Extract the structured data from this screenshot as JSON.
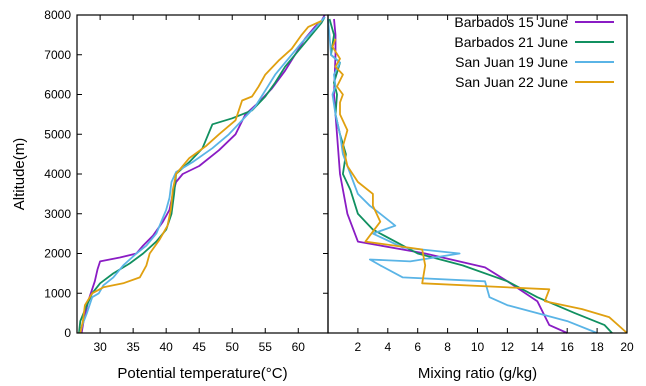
{
  "chart_data": [
    {
      "type": "line",
      "xlabel": "Potential temperature(°C)",
      "ylabel": "Altitude(m)",
      "xlim": [
        26.5,
        64.5
      ],
      "ylim": [
        0,
        8000
      ],
      "xticks": [
        30,
        35,
        40,
        45,
        50,
        55,
        60
      ],
      "yticks": [
        0,
        1000,
        2000,
        3000,
        4000,
        5000,
        6000,
        7000,
        8000
      ],
      "grid": false,
      "series": [
        {
          "name": "Barbados 15 June",
          "color": "#8a1cc4",
          "points": [
            [
              27.2,
              0
            ],
            [
              27.5,
              300
            ],
            [
              28.2,
              800
            ],
            [
              29.2,
              1300
            ],
            [
              29.6,
              1600
            ],
            [
              30.0,
              1800
            ],
            [
              33.0,
              1900
            ],
            [
              35.5,
              2000
            ],
            [
              36.5,
              2200
            ],
            [
              38.0,
              2450
            ],
            [
              39.5,
              2800
            ],
            [
              40.5,
              3100
            ],
            [
              41.0,
              3500
            ],
            [
              41.5,
              3800
            ],
            [
              42.5,
              4000
            ],
            [
              45.0,
              4200
            ],
            [
              48.0,
              4600
            ],
            [
              50.5,
              5000
            ],
            [
              52.0,
              5500
            ],
            [
              54.0,
              5800
            ],
            [
              56.0,
              6150
            ],
            [
              58.0,
              6600
            ],
            [
              59.5,
              7000
            ],
            [
              61.0,
              7400
            ],
            [
              62.5,
              7700
            ],
            [
              63.5,
              7850
            ],
            [
              64.0,
              8000
            ]
          ]
        },
        {
          "name": "Barbados 21 June",
          "color": "#119060",
          "points": [
            [
              26.8,
              0
            ],
            [
              27.0,
              300
            ],
            [
              28.0,
              700
            ],
            [
              28.8,
              1000
            ],
            [
              30.0,
              1250
            ],
            [
              32.0,
              1500
            ],
            [
              34.5,
              1750
            ],
            [
              36.5,
              2000
            ],
            [
              38.5,
              2300
            ],
            [
              40.0,
              2600
            ],
            [
              40.8,
              3000
            ],
            [
              41.2,
              3500
            ],
            [
              41.5,
              4000
            ],
            [
              43.5,
              4300
            ],
            [
              45.5,
              4650
            ],
            [
              47.0,
              5250
            ],
            [
              50.0,
              5400
            ],
            [
              53.0,
              5600
            ],
            [
              55.0,
              5950
            ],
            [
              56.5,
              6300
            ],
            [
              58.0,
              6700
            ],
            [
              60.0,
              7100
            ],
            [
              62.0,
              7500
            ],
            [
              63.5,
              7800
            ],
            [
              64.0,
              7950
            ]
          ]
        },
        {
          "name": "San Juan 19 June",
          "color": "#5ab4e6",
          "points": [
            [
              27.0,
              0
            ],
            [
              27.3,
              200
            ],
            [
              28.0,
              500
            ],
            [
              28.8,
              900
            ],
            [
              29.8,
              1000
            ],
            [
              30.5,
              1200
            ],
            [
              32.0,
              1400
            ],
            [
              33.5,
              1700
            ],
            [
              35.5,
              2000
            ],
            [
              37.0,
              2200
            ],
            [
              38.5,
              2500
            ],
            [
              39.0,
              2700
            ],
            [
              39.5,
              2900
            ],
            [
              40.0,
              3100
            ],
            [
              40.5,
              3400
            ],
            [
              40.8,
              3800
            ],
            [
              41.5,
              4050
            ],
            [
              44.0,
              4300
            ],
            [
              47.0,
              4650
            ],
            [
              49.5,
              5000
            ],
            [
              51.5,
              5350
            ],
            [
              53.5,
              5700
            ],
            [
              55.0,
              6100
            ],
            [
              56.5,
              6500
            ],
            [
              58.5,
              6900
            ],
            [
              60.5,
              7300
            ],
            [
              62.5,
              7650
            ],
            [
              64.0,
              7950
            ]
          ]
        },
        {
          "name": "San Juan 22 June",
          "color": "#e0a010",
          "points": [
            [
              27.0,
              0
            ],
            [
              27.4,
              300
            ],
            [
              27.7,
              700
            ],
            [
              28.8,
              1000
            ],
            [
              30.5,
              1150
            ],
            [
              33.5,
              1250
            ],
            [
              36.0,
              1400
            ],
            [
              37.0,
              1700
            ],
            [
              37.5,
              2000
            ],
            [
              39.0,
              2350
            ],
            [
              40.2,
              2700
            ],
            [
              40.7,
              3100
            ],
            [
              41.0,
              3600
            ],
            [
              41.5,
              4000
            ],
            [
              43.5,
              4400
            ],
            [
              46.0,
              4700
            ],
            [
              48.0,
              5000
            ],
            [
              50.5,
              5350
            ],
            [
              51.5,
              5850
            ],
            [
              53.0,
              5950
            ],
            [
              54.0,
              6200
            ],
            [
              55.0,
              6500
            ],
            [
              57.0,
              6850
            ],
            [
              59.0,
              7150
            ],
            [
              60.5,
              7500
            ],
            [
              61.5,
              7700
            ],
            [
              63.5,
              7850
            ]
          ]
        }
      ]
    },
    {
      "type": "line",
      "xlabel": "Mixing ratio (g/kg)",
      "ylabel": "",
      "xlim": [
        0,
        20
      ],
      "ylim": [
        0,
        8000
      ],
      "xticks": [
        2,
        4,
        6,
        8,
        10,
        12,
        14,
        16,
        18,
        20
      ],
      "grid": false,
      "legend": "top-right",
      "series": [
        {
          "name": "Barbados 15 June",
          "color": "#8a1cc4",
          "points": [
            [
              16.0,
              0
            ],
            [
              14.8,
              200
            ],
            [
              14.0,
              800
            ],
            [
              12.0,
              1300
            ],
            [
              10.5,
              1650
            ],
            [
              6.5,
              2000
            ],
            [
              2.0,
              2300
            ],
            [
              1.3,
              3000
            ],
            [
              0.8,
              4000
            ],
            [
              0.6,
              5000
            ],
            [
              0.4,
              6000
            ],
            [
              0.5,
              7000
            ],
            [
              0.5,
              7500
            ],
            [
              0.4,
              7900
            ]
          ]
        },
        {
          "name": "Barbados 21 June",
          "color": "#119060",
          "points": [
            [
              19.0,
              0
            ],
            [
              18.5,
              200
            ],
            [
              16.5,
              500
            ],
            [
              14.0,
              900
            ],
            [
              12.0,
              1300
            ],
            [
              9.0,
              1700
            ],
            [
              6.0,
              2000
            ],
            [
              4.5,
              2300
            ],
            [
              3.0,
              2600
            ],
            [
              2.0,
              3000
            ],
            [
              1.5,
              3600
            ],
            [
              1.0,
              4000
            ],
            [
              1.2,
              4500
            ],
            [
              0.8,
              5000
            ],
            [
              0.5,
              5500
            ],
            [
              0.6,
              6000
            ],
            [
              0.4,
              6300
            ],
            [
              0.8,
              6800
            ],
            [
              0.2,
              7000
            ],
            [
              0.4,
              7500
            ],
            [
              0.1,
              7900
            ]
          ]
        },
        {
          "name": "San Juan 19 June",
          "color": "#5ab4e6",
          "points": [
            [
              18.0,
              0
            ],
            [
              16.0,
              300
            ],
            [
              12.0,
              700
            ],
            [
              10.8,
              900
            ],
            [
              10.5,
              1300
            ],
            [
              5.0,
              1400
            ],
            [
              3.5,
              1700
            ],
            [
              2.8,
              1850
            ],
            [
              5.5,
              1800
            ],
            [
              8.8,
              2000
            ],
            [
              5.0,
              2150
            ],
            [
              3.0,
              2500
            ],
            [
              4.5,
              2700
            ],
            [
              3.5,
              3000
            ],
            [
              2.8,
              3200
            ],
            [
              2.0,
              3500
            ],
            [
              1.5,
              4000
            ],
            [
              1.0,
              4500
            ],
            [
              0.8,
              5000
            ],
            [
              0.5,
              5500
            ],
            [
              0.3,
              6000
            ],
            [
              0.5,
              6200
            ],
            [
              0.4,
              6500
            ],
            [
              0.8,
              6800
            ],
            [
              0.2,
              7000
            ],
            [
              0.1,
              7500
            ],
            [
              0.0,
              7900
            ]
          ]
        },
        {
          "name": "San Juan 22 June",
          "color": "#e0a010",
          "points": [
            [
              20.0,
              0
            ],
            [
              18.8,
              400
            ],
            [
              17.0,
              600
            ],
            [
              14.5,
              800
            ],
            [
              14.8,
              1100
            ],
            [
              6.3,
              1250
            ],
            [
              6.5,
              1700
            ],
            [
              6.3,
              2100
            ],
            [
              2.5,
              2300
            ],
            [
              3.5,
              2800
            ],
            [
              3.0,
              3200
            ],
            [
              3.0,
              3500
            ],
            [
              2.0,
              3800
            ],
            [
              1.3,
              4200
            ],
            [
              1.0,
              4700
            ],
            [
              1.3,
              5100
            ],
            [
              0.8,
              5500
            ],
            [
              0.8,
              5800
            ],
            [
              1.0,
              6000
            ],
            [
              0.6,
              6200
            ],
            [
              1.0,
              6500
            ],
            [
              0.5,
              6700
            ],
            [
              0.8,
              6900
            ],
            [
              0.3,
              7200
            ],
            [
              0.5,
              7400
            ]
          ]
        }
      ]
    }
  ]
}
